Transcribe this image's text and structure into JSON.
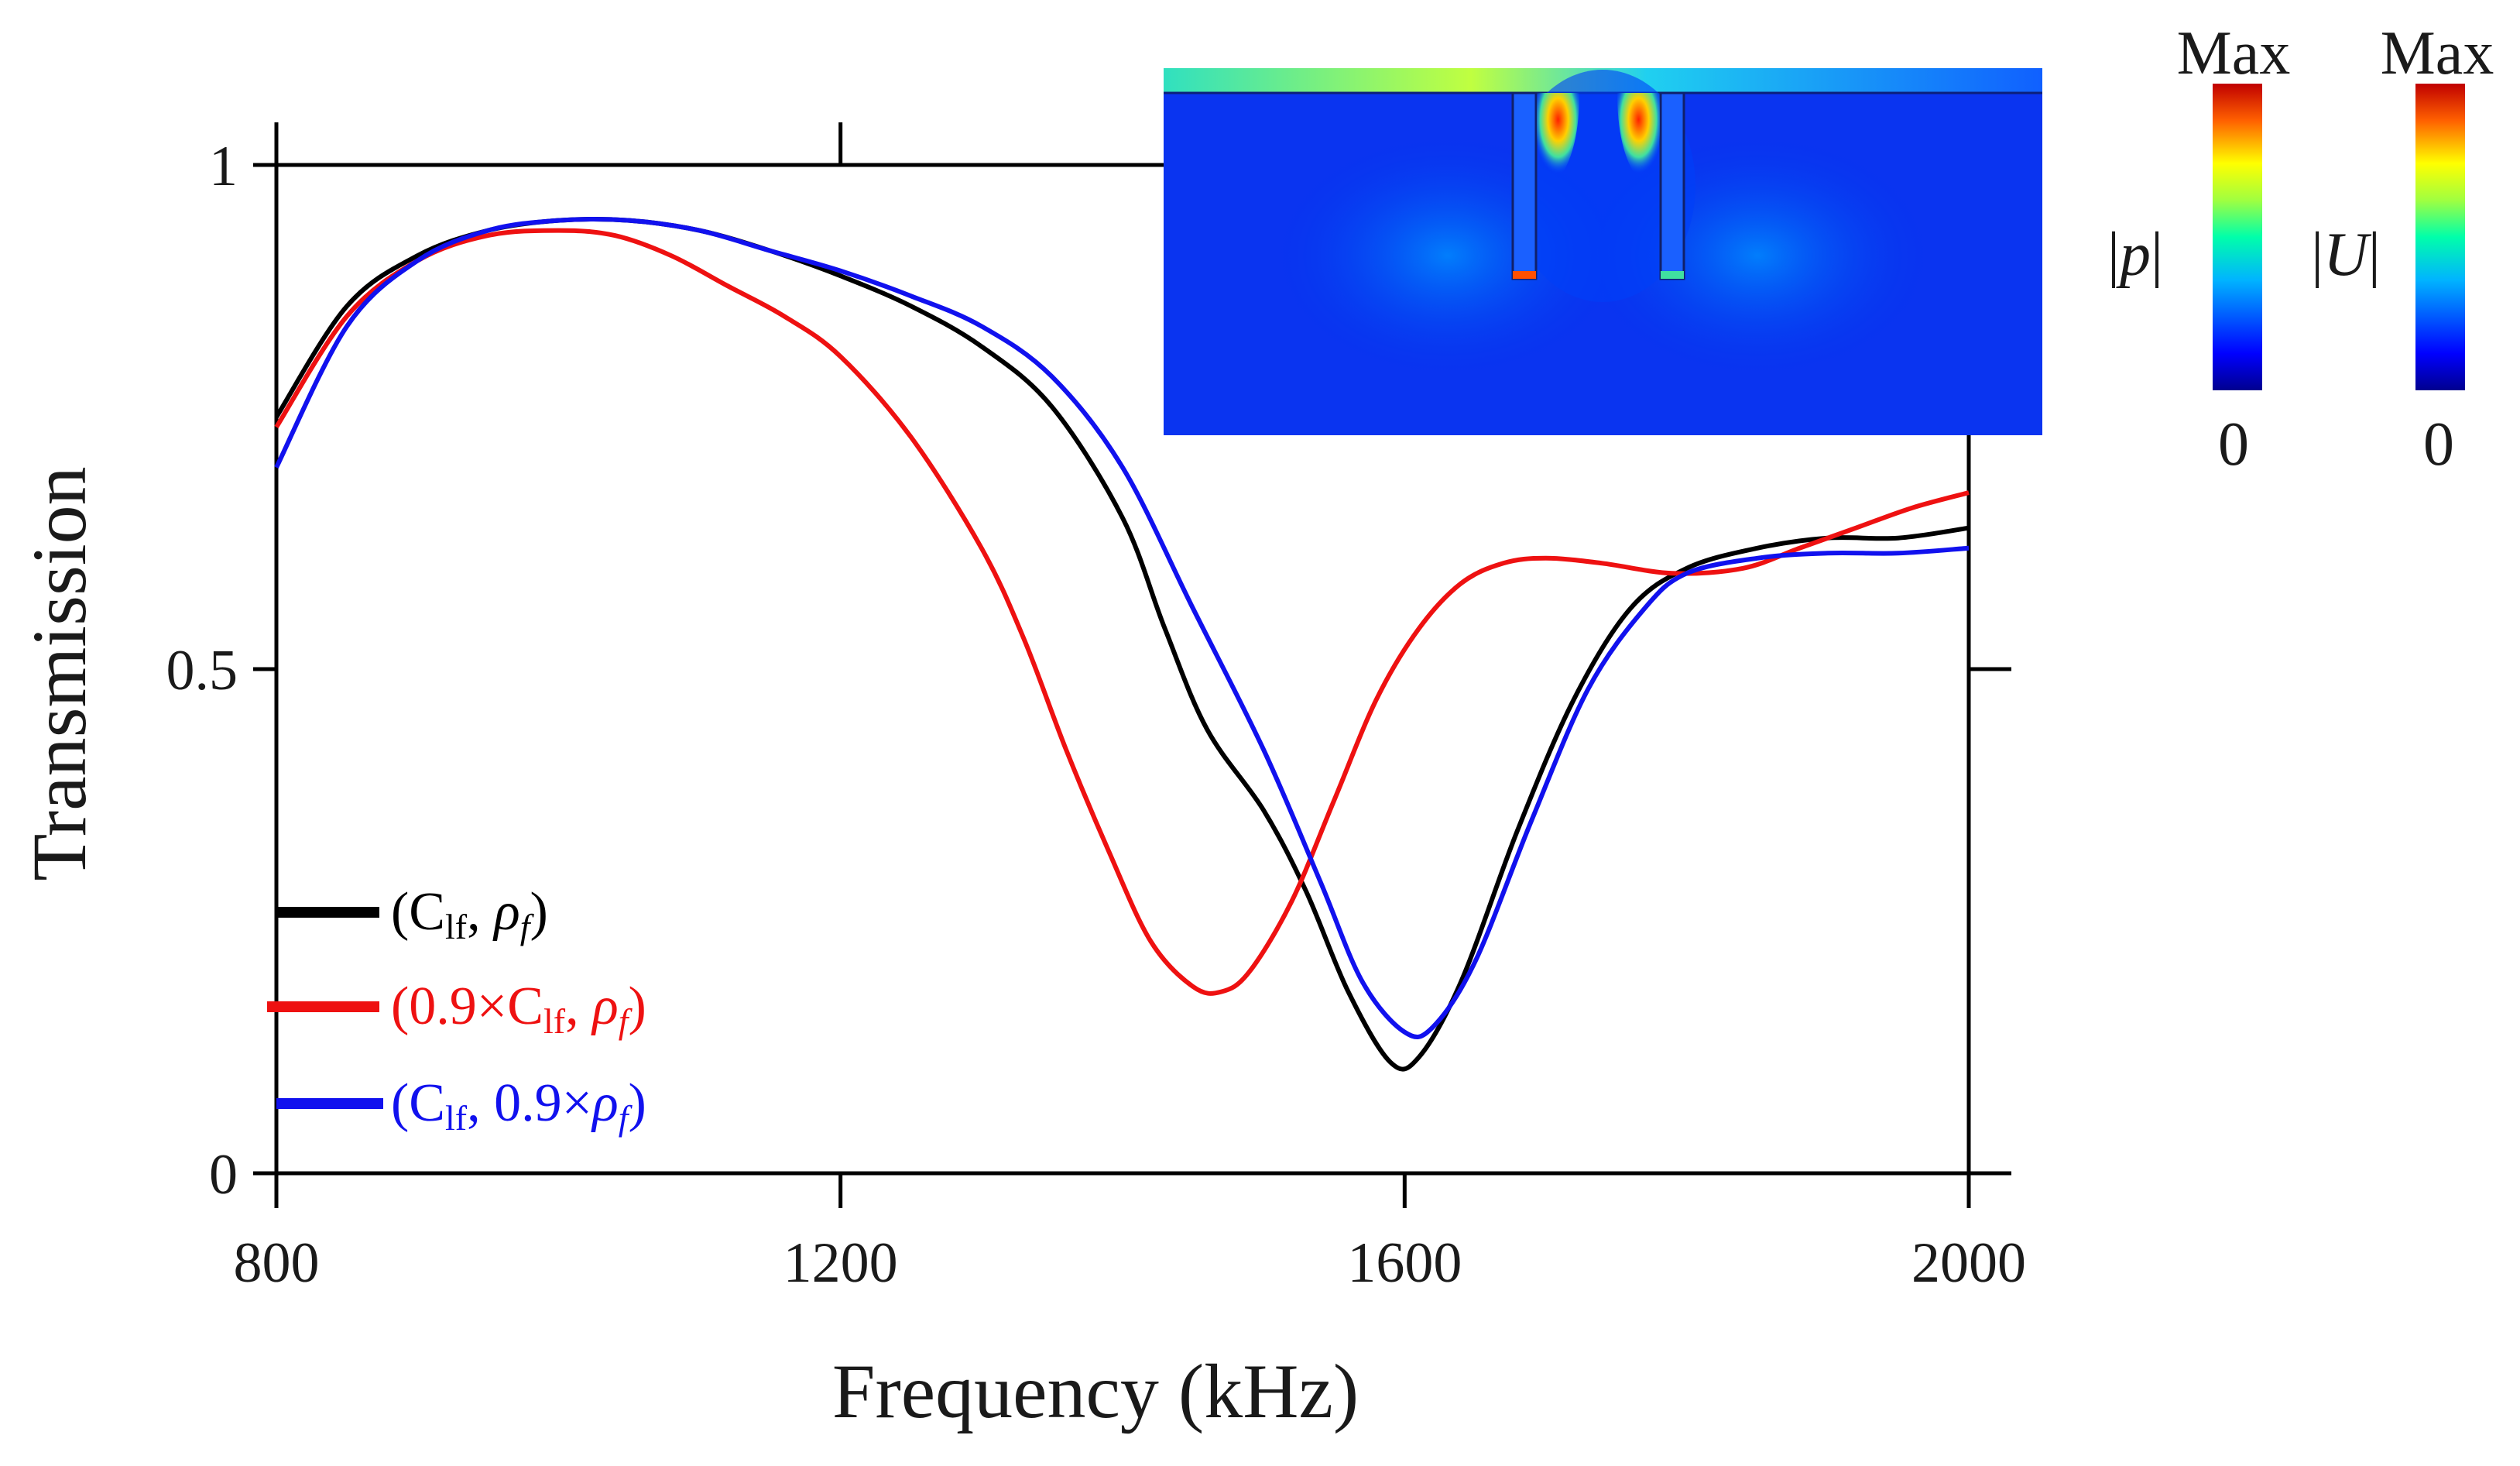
{
  "chart_data": {
    "type": "line",
    "xlabel": "Frequency (kHz)",
    "ylabel": "Transmission",
    "xlim": [
      800,
      2000
    ],
    "ylim": [
      0,
      1
    ],
    "x_ticks": [
      800,
      1200,
      1600,
      2000
    ],
    "y_ticks": [
      0,
      0.5,
      1
    ],
    "y_tick_labels": [
      "0",
      "0.5",
      "1"
    ],
    "grid": false,
    "legend_position": "bottom-left",
    "series": [
      {
        "name": "(Clf, ρf)",
        "legend": {
          "open": "(C",
          "sub1": "lf",
          "mid": ", ",
          "rho": "ρ",
          "sub2": "f",
          "close": ")"
        },
        "color": "#000000",
        "x": [
          800,
          850,
          900,
          950,
          1000,
          1050,
          1100,
          1150,
          1200,
          1250,
          1300,
          1350,
          1400,
          1430,
          1460,
          1500,
          1530,
          1560,
          1590,
          1610,
          1640,
          1680,
          1720,
          1760,
          1800,
          1850,
          1900,
          1950,
          2000
        ],
        "y": [
          0.75,
          0.86,
          0.91,
          0.935,
          0.945,
          0.945,
          0.935,
          0.915,
          0.89,
          0.86,
          0.82,
          0.76,
          0.65,
          0.54,
          0.44,
          0.36,
          0.28,
          0.18,
          0.11,
          0.115,
          0.19,
          0.34,
          0.47,
          0.56,
          0.6,
          0.62,
          0.63,
          0.63,
          0.64
        ]
      },
      {
        "name": "(0.9×Clf, ρf)",
        "legend": {
          "open": "(0.9×C",
          "sub1": "lf",
          "mid": ", ",
          "rho": "ρ",
          "sub2": "f",
          "close": ")"
        },
        "color": "#ee1111",
        "x": [
          800,
          850,
          900,
          950,
          1000,
          1040,
          1080,
          1120,
          1160,
          1200,
          1250,
          1300,
          1330,
          1360,
          1390,
          1420,
          1450,
          1470,
          1490,
          1520,
          1550,
          1580,
          1610,
          1640,
          1670,
          1700,
          1740,
          1790,
          1840,
          1880,
          1920,
          1960,
          2000
        ],
        "y": [
          0.74,
          0.85,
          0.905,
          0.93,
          0.935,
          0.93,
          0.91,
          0.88,
          0.85,
          0.81,
          0.73,
          0.62,
          0.53,
          0.42,
          0.32,
          0.23,
          0.185,
          0.18,
          0.2,
          0.27,
          0.37,
          0.47,
          0.54,
          0.585,
          0.605,
          0.61,
          0.605,
          0.595,
          0.6,
          0.62,
          0.64,
          0.66,
          0.675
        ]
      },
      {
        "name": "(Clf, 0.9×ρf)",
        "legend": {
          "open": "(C",
          "sub1": "lf",
          "mid": ", 0.9×",
          "rho": "ρ",
          "sub2": "f",
          "close": ")"
        },
        "color": "#1111ee",
        "x": [
          800,
          850,
          900,
          950,
          1000,
          1050,
          1100,
          1150,
          1200,
          1250,
          1300,
          1350,
          1400,
          1450,
          1500,
          1540,
          1570,
          1600,
          1620,
          1650,
          1690,
          1730,
          1770,
          1800,
          1850,
          1900,
          1950,
          2000
        ],
        "y": [
          0.7,
          0.84,
          0.905,
          0.935,
          0.945,
          0.945,
          0.935,
          0.915,
          0.895,
          0.87,
          0.84,
          0.79,
          0.7,
          0.56,
          0.42,
          0.29,
          0.19,
          0.14,
          0.145,
          0.21,
          0.35,
          0.48,
          0.56,
          0.595,
          0.61,
          0.615,
          0.615,
          0.62
        ]
      }
    ],
    "inset": {
      "description_hidden": true,
      "colorbars": [
        {
          "quantity": "|p|",
          "label_left": "|",
          "label_var": "p",
          "label_right": "|",
          "max": "Max",
          "min": "0"
        },
        {
          "quantity": "|U|",
          "label_left": "|",
          "label_var": "U",
          "label_right": "|",
          "max": "Max",
          "min": "0"
        }
      ]
    }
  }
}
